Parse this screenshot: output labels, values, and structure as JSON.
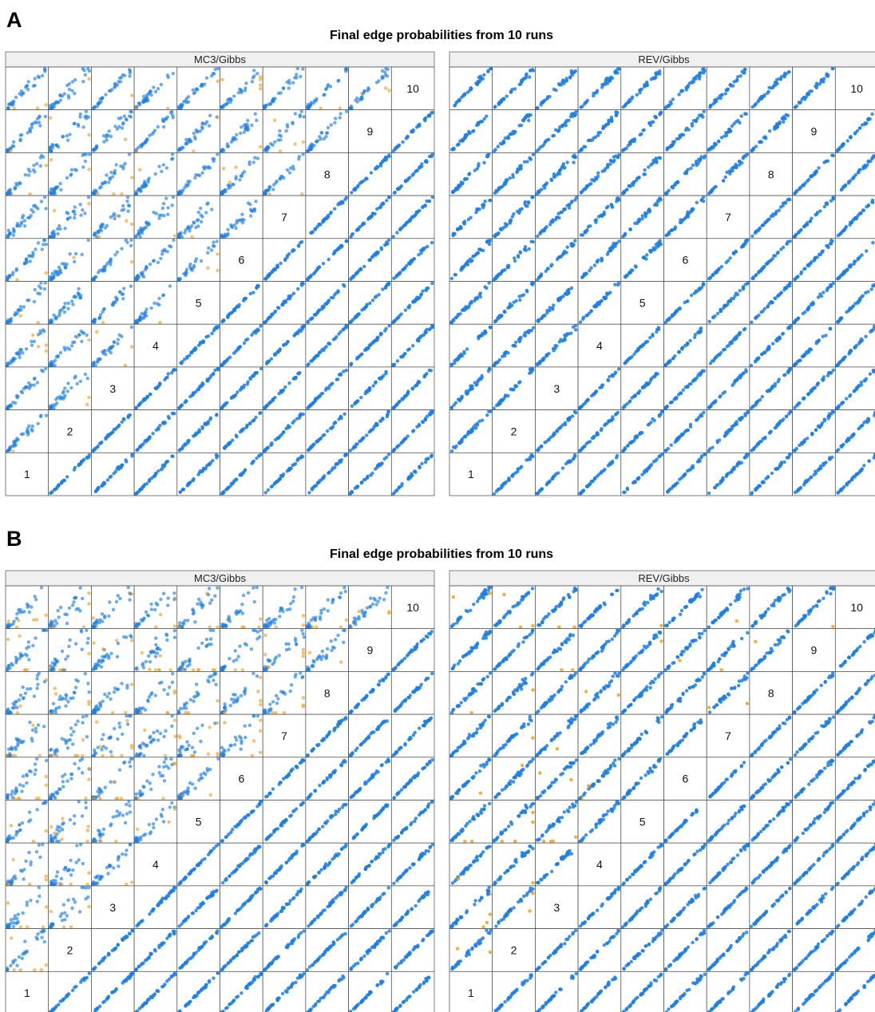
{
  "panels": [
    {
      "letter": "A",
      "title": "Final edge probabilities from 10 runs",
      "facets": [
        {
          "strip": "MC3/Gibbs",
          "labels": [
            1,
            2,
            3,
            4,
            5,
            6,
            7,
            8,
            9,
            10
          ]
        },
        {
          "strip": "REV/Gibbs",
          "labels": [
            1,
            2,
            3,
            4,
            5,
            6,
            7,
            8,
            9,
            10
          ]
        }
      ]
    },
    {
      "letter": "B",
      "title": "Final edge probabilities from 10 runs",
      "facets": [
        {
          "strip": "MC3/Gibbs",
          "labels": [
            1,
            2,
            3,
            4,
            5,
            6,
            7,
            8,
            9,
            10
          ]
        },
        {
          "strip": "REV/Gibbs",
          "labels": [
            1,
            2,
            3,
            4,
            5,
            6,
            7,
            8,
            9,
            10
          ]
        }
      ]
    }
  ]
}
